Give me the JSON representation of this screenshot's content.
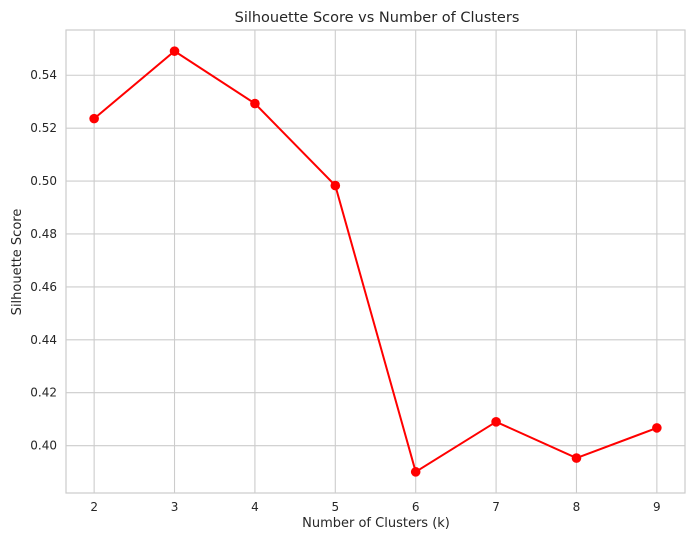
{
  "chart_data": {
    "type": "line",
    "title": "Silhouette Score vs Number of Clusters",
    "xlabel": "Number of Clusters (k)",
    "ylabel": "Silhouette Score",
    "x": [
      2,
      3,
      4,
      5,
      6,
      7,
      8,
      9
    ],
    "series": [
      {
        "values": [
          0.5236,
          0.5491,
          0.5293,
          0.4983,
          0.3901,
          0.409,
          0.3953,
          0.4067
        ],
        "color": "#ff0000"
      }
    ],
    "xticks": [
      "2",
      "3",
      "4",
      "5",
      "6",
      "7",
      "8",
      "9"
    ],
    "yticks": [
      "0.40",
      "0.42",
      "0.44",
      "0.46",
      "0.48",
      "0.50",
      "0.52",
      "0.54"
    ],
    "ytick_values": [
      0.4,
      0.42,
      0.44,
      0.46,
      0.48,
      0.5,
      0.52,
      0.54
    ],
    "xlim": [
      1.65,
      9.35
    ],
    "ylim": [
      0.3821,
      0.5571
    ],
    "grid": true,
    "marker": "circle"
  }
}
